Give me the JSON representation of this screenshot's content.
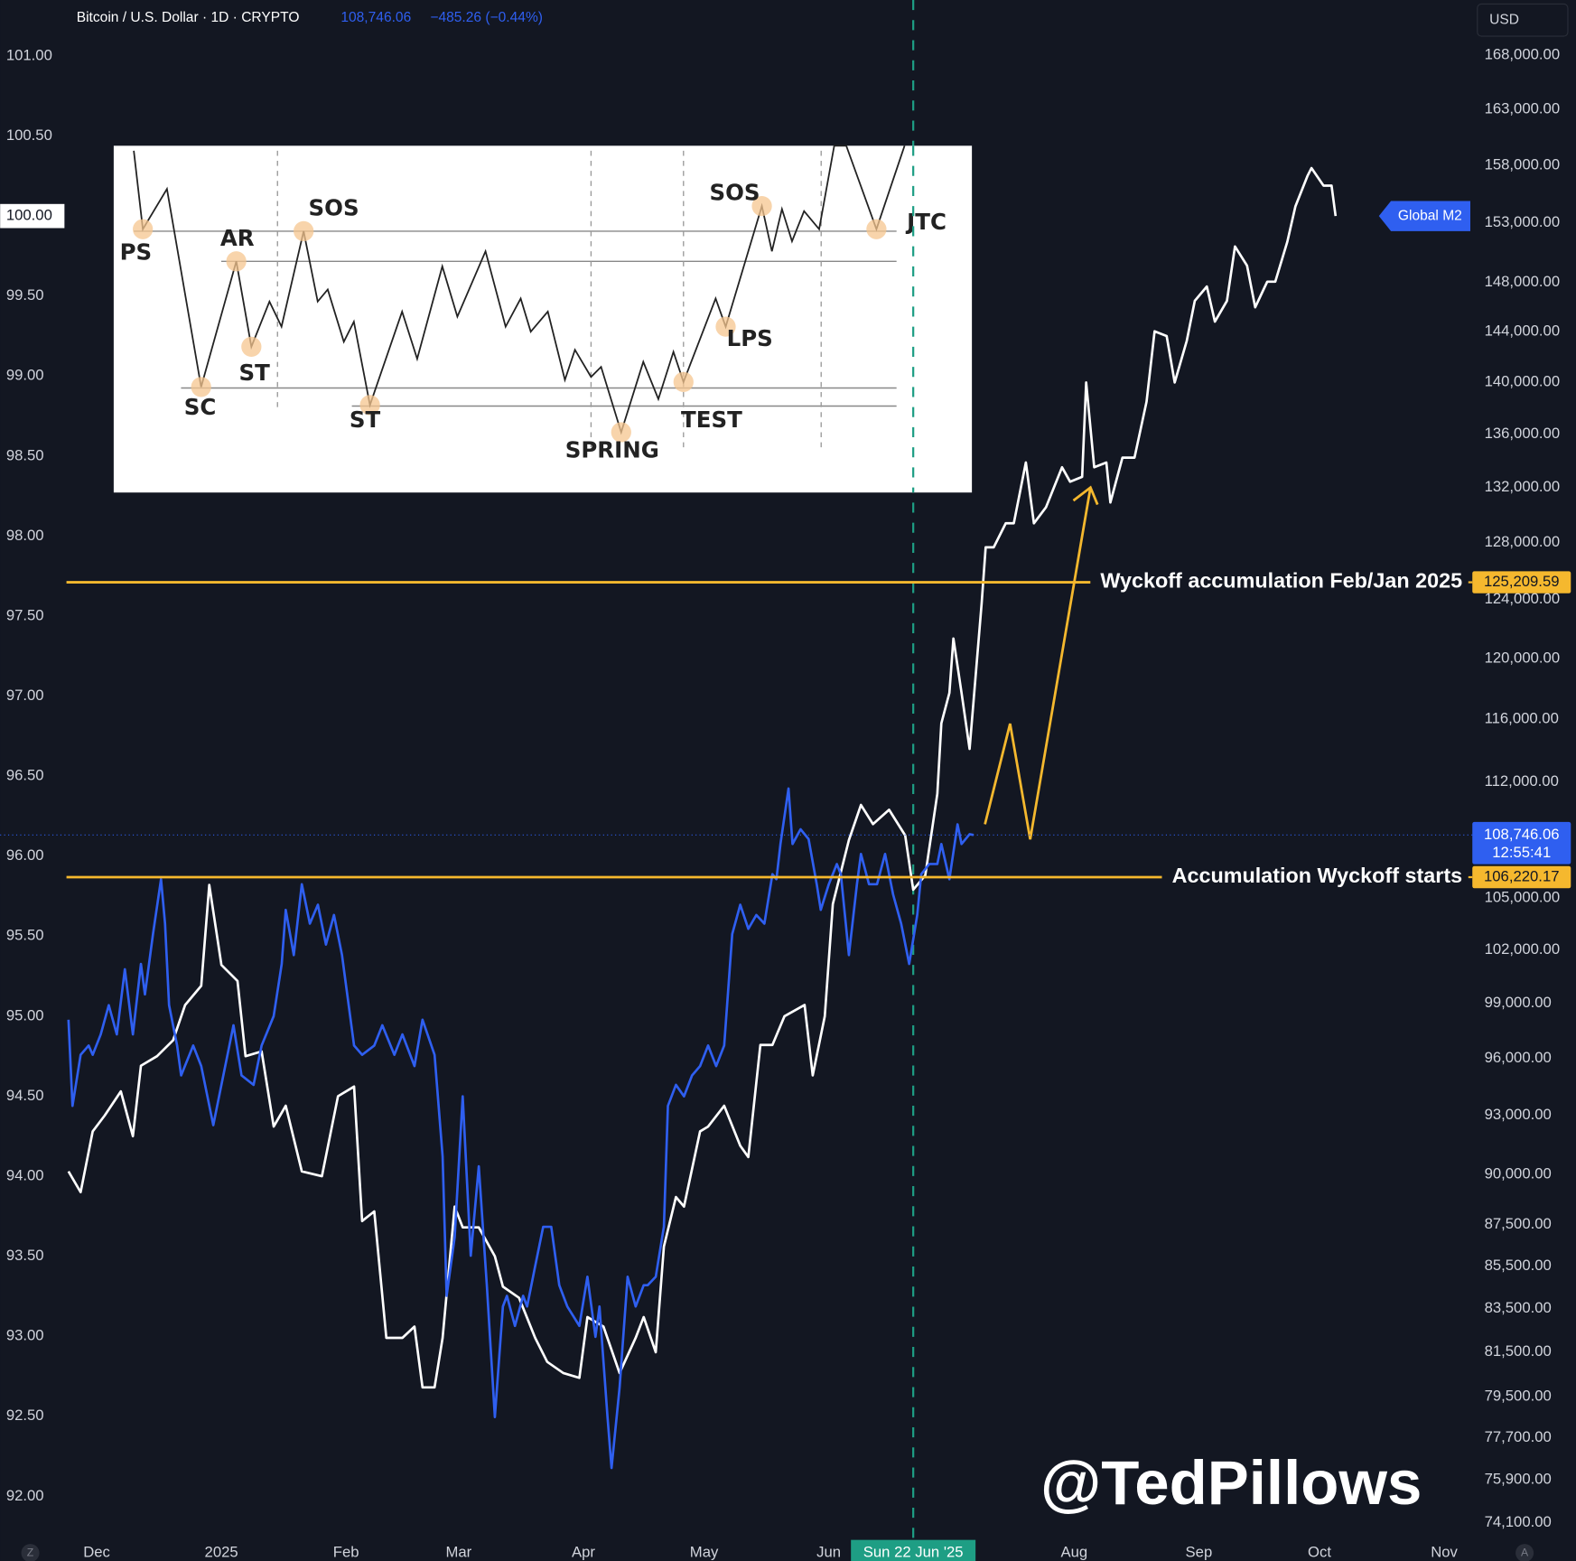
{
  "header": {
    "change": "−485.26 (−0.44%)"
  },
  "currency_button": "USD",
  "chart_data": {
    "type": "line",
    "xlim": [
      -24,
      342
    ],
    "xticks": [
      {
        "value": 0,
        "label": "Dec"
      },
      {
        "value": 31,
        "label": "2025"
      },
      {
        "value": 62,
        "label": "Feb"
      },
      {
        "value": 90,
        "label": "Mar"
      },
      {
        "value": 121,
        "label": "Apr"
      },
      {
        "value": 151,
        "label": "May"
      },
      {
        "value": 182,
        "label": "Jun"
      },
      {
        "value": 243,
        "label": "Aug"
      },
      {
        "value": 274,
        "label": "Sep"
      },
      {
        "value": 304,
        "label": "Oct"
      },
      {
        "value": 335,
        "label": "Nov"
      }
    ],
    "ylim": [
      91.74,
      101.35
    ],
    "yticks": [
      {
        "value": 92,
        "label": "92.00"
      },
      {
        "value": 92.5,
        "label": "92.50"
      },
      {
        "value": 93,
        "label": "93.00"
      },
      {
        "value": 93.5,
        "label": "93.50"
      },
      {
        "value": 94,
        "label": "94.00"
      },
      {
        "value": 94.5,
        "label": "94.50"
      },
      {
        "value": 95,
        "label": "95.00"
      },
      {
        "value": 95.5,
        "label": "95.50"
      },
      {
        "value": 96,
        "label": "96.00"
      },
      {
        "value": 96.5,
        "label": "96.50"
      },
      {
        "value": 97,
        "label": "97.00"
      },
      {
        "value": 97.5,
        "label": "97.50"
      },
      {
        "value": 98,
        "label": "98.00"
      },
      {
        "value": 98.5,
        "label": "98.50"
      },
      {
        "value": 99,
        "label": "99.00"
      },
      {
        "value": 99.5,
        "label": "99.50"
      },
      {
        "value": 100,
        "label": "100.00"
      },
      {
        "value": 100.5,
        "label": "100.50"
      },
      {
        "value": 101,
        "label": "101.00"
      }
    ],
    "y2lim": [
      73480,
      173250
    ],
    "y2_log": true,
    "y2ticks": [
      {
        "value": 74100,
        "label": "74,100.00"
      },
      {
        "value": 75900,
        "label": "75,900.00"
      },
      {
        "value": 77700,
        "label": "77,700.00"
      },
      {
        "value": 79500,
        "label": "79,500.00"
      },
      {
        "value": 81500,
        "label": "81,500.00"
      },
      {
        "value": 83500,
        "label": "83,500.00"
      },
      {
        "value": 85500,
        "label": "85,500.00"
      },
      {
        "value": 87500,
        "label": "87,500.00"
      },
      {
        "value": 90000,
        "label": "90,000.00"
      },
      {
        "value": 93000,
        "label": "93,000.00"
      },
      {
        "value": 96000,
        "label": "96,000.00"
      },
      {
        "value": 99000,
        "label": "99,000.00"
      },
      {
        "value": 102000,
        "label": "102,000.00"
      },
      {
        "value": 105000,
        "label": "105,000.00"
      },
      {
        "value": 112000,
        "label": "112,000.00"
      },
      {
        "value": 116000,
        "label": "116,000.00"
      },
      {
        "value": 120000,
        "label": "120,000.00"
      },
      {
        "value": 124000,
        "label": "124,000.00"
      },
      {
        "value": 128000,
        "label": "128,000.00"
      },
      {
        "value": 132000,
        "label": "132,000.00"
      },
      {
        "value": 136000,
        "label": "136,000.00"
      },
      {
        "value": 140000,
        "label": "140,000.00"
      },
      {
        "value": 144000,
        "label": "144,000.00"
      },
      {
        "value": 148000,
        "label": "148,000.00"
      },
      {
        "value": 153000,
        "label": "153,000.00"
      },
      {
        "value": 158000,
        "label": "158,000.00"
      },
      {
        "value": 163000,
        "label": "163,000.00"
      },
      {
        "value": 168000,
        "label": "168,000.00"
      }
    ],
    "series": [
      {
        "name": "Global M2",
        "color": "#ffffff",
        "axis": "y",
        "x": [
          -7,
          -4,
          -1,
          2,
          6,
          9,
          11,
          15,
          19,
          22,
          26,
          28,
          31,
          35,
          37,
          41,
          44,
          47,
          51,
          56,
          60,
          64,
          66,
          69,
          72,
          76,
          79,
          81,
          84,
          86,
          89,
          91,
          95,
          99,
          101,
          105,
          109,
          112,
          116,
          120,
          122,
          126,
          130,
          134,
          136,
          139,
          141,
          144,
          146,
          150,
          152,
          156,
          160,
          162,
          165,
          168,
          171,
          176,
          178,
          181,
          183,
          187,
          190,
          193,
          197,
          201,
          203,
          206,
          209,
          210,
          212,
          213,
          215,
          217,
          220,
          221,
          223,
          226,
          228,
          231,
          233,
          236,
          240,
          242,
          245,
          246,
          248,
          251,
          252,
          255,
          258,
          261,
          263,
          266,
          268,
          271,
          273,
          276,
          278,
          281,
          283,
          286,
          288,
          291,
          293,
          296,
          298,
          301,
          302,
          305,
          307,
          308
        ],
        "values": [
          94.03,
          93.9,
          94.28,
          94.38,
          94.53,
          94.25,
          94.69,
          94.75,
          94.85,
          95.07,
          95.19,
          95.82,
          95.32,
          95.22,
          94.75,
          94.78,
          94.31,
          94.44,
          94.03,
          94.0,
          94.5,
          94.56,
          93.72,
          93.78,
          92.99,
          92.99,
          93.06,
          92.68,
          92.68,
          92.99,
          93.81,
          93.68,
          93.68,
          93.5,
          93.31,
          93.24,
          92.99,
          92.84,
          92.77,
          92.74,
          93.12,
          93.06,
          92.77,
          92.99,
          93.12,
          92.9,
          93.56,
          93.87,
          93.81,
          94.28,
          94.31,
          94.44,
          94.19,
          94.12,
          94.82,
          94.82,
          95.0,
          95.07,
          94.63,
          95.0,
          95.7,
          96.1,
          96.32,
          96.2,
          96.29,
          96.13,
          95.79,
          95.88,
          96.39,
          96.83,
          97.02,
          97.36,
          97.02,
          96.67,
          97.58,
          97.93,
          97.93,
          98.08,
          98.08,
          98.46,
          98.08,
          98.18,
          98.43,
          98.34,
          98.37,
          98.96,
          98.43,
          98.46,
          98.21,
          98.49,
          98.49,
          98.84,
          99.28,
          99.25,
          98.96,
          99.22,
          99.47,
          99.56,
          99.34,
          99.47,
          99.81,
          99.69,
          99.43,
          99.59,
          99.59,
          99.84,
          100.06,
          100.25,
          100.3,
          100.19,
          100.19,
          100.0
        ]
      },
      {
        "name": "Bitcoin / U.S. Dollar · 1D · CRYPTO",
        "color": "#2f5ff0",
        "axis": "y2",
        "x": [
          -7,
          -6,
          -4,
          -2,
          -1,
          1,
          3,
          5,
          7,
          9,
          11,
          12,
          14,
          16,
          17,
          18,
          20,
          21,
          24,
          26,
          29,
          31,
          34,
          36,
          39,
          41,
          44,
          46,
          47,
          49,
          51,
          53,
          55,
          57,
          59,
          61,
          62,
          64,
          66,
          69,
          71,
          74,
          76,
          79,
          81,
          84,
          86,
          87,
          89,
          91,
          93,
          95,
          97,
          99,
          101,
          102,
          104,
          106,
          107,
          109,
          111,
          113,
          115,
          117,
          120,
          122,
          124,
          125,
          127,
          128,
          130,
          132,
          134,
          136,
          137,
          139,
          141,
          142,
          144,
          146,
          148,
          150,
          152,
          154,
          156,
          158,
          160,
          162,
          164,
          166,
          168,
          169,
          170,
          172,
          173,
          175,
          177,
          179,
          180,
          182,
          184,
          185,
          187,
          189,
          190,
          192,
          194,
          196,
          198,
          200,
          202,
          204,
          205,
          207,
          209,
          210,
          212,
          214,
          215,
          217,
          218
        ],
        "values": [
          98100,
          93500,
          96200,
          96700,
          96200,
          97300,
          98900,
          97300,
          100900,
          97300,
          101200,
          99500,
          102900,
          106100,
          103500,
          98900,
          96700,
          95100,
          96700,
          95600,
          92500,
          94600,
          97800,
          95100,
          94600,
          96700,
          98300,
          101200,
          104300,
          101700,
          105800,
          103500,
          104600,
          102300,
          104000,
          101700,
          100000,
          96700,
          96200,
          96700,
          97800,
          96200,
          97300,
          95600,
          98100,
          96200,
          90900,
          84100,
          86900,
          94000,
          86000,
          90400,
          84600,
          78600,
          83600,
          84100,
          82700,
          84100,
          83600,
          85500,
          87400,
          87400,
          84600,
          83600,
          82700,
          85000,
          82200,
          83600,
          78600,
          76400,
          79900,
          85000,
          83600,
          84600,
          84600,
          85000,
          87400,
          93500,
          94600,
          94000,
          95100,
          95600,
          96700,
          95600,
          96700,
          102900,
          104600,
          103200,
          104000,
          103500,
          106400,
          106100,
          108200,
          111600,
          108200,
          109100,
          108500,
          105800,
          104300,
          105800,
          107000,
          106400,
          101700,
          105800,
          107600,
          105800,
          105800,
          107600,
          105200,
          103500,
          101200,
          104000,
          106400,
          107000,
          107000,
          108200,
          106100,
          109400,
          108200,
          108800,
          108746.06
        ]
      }
    ],
    "last_price": {
      "value": 108746.06,
      "label": "108,746.06",
      "countdown": "12:55:41"
    },
    "levels": [
      {
        "value": 125209.59,
        "label": "125,209.59",
        "text": "Wyckoff accumulation Feb/Jan 2025"
      },
      {
        "value": 106220.17,
        "label": "106,220.17",
        "text": "Accumulation Wyckoff starts"
      }
    ],
    "cursor": {
      "x": 203,
      "label": "Sun 22 Jun '25"
    }
  },
  "inset": {
    "labels": [
      "PS",
      "SC",
      "AR",
      "ST",
      "SOS",
      "ST",
      "SPRING",
      "TEST",
      "SOS",
      "LPS",
      "JTC"
    ]
  },
  "watermark": "@TedPillows",
  "corner_buttons": [
    "Z",
    "A"
  ]
}
